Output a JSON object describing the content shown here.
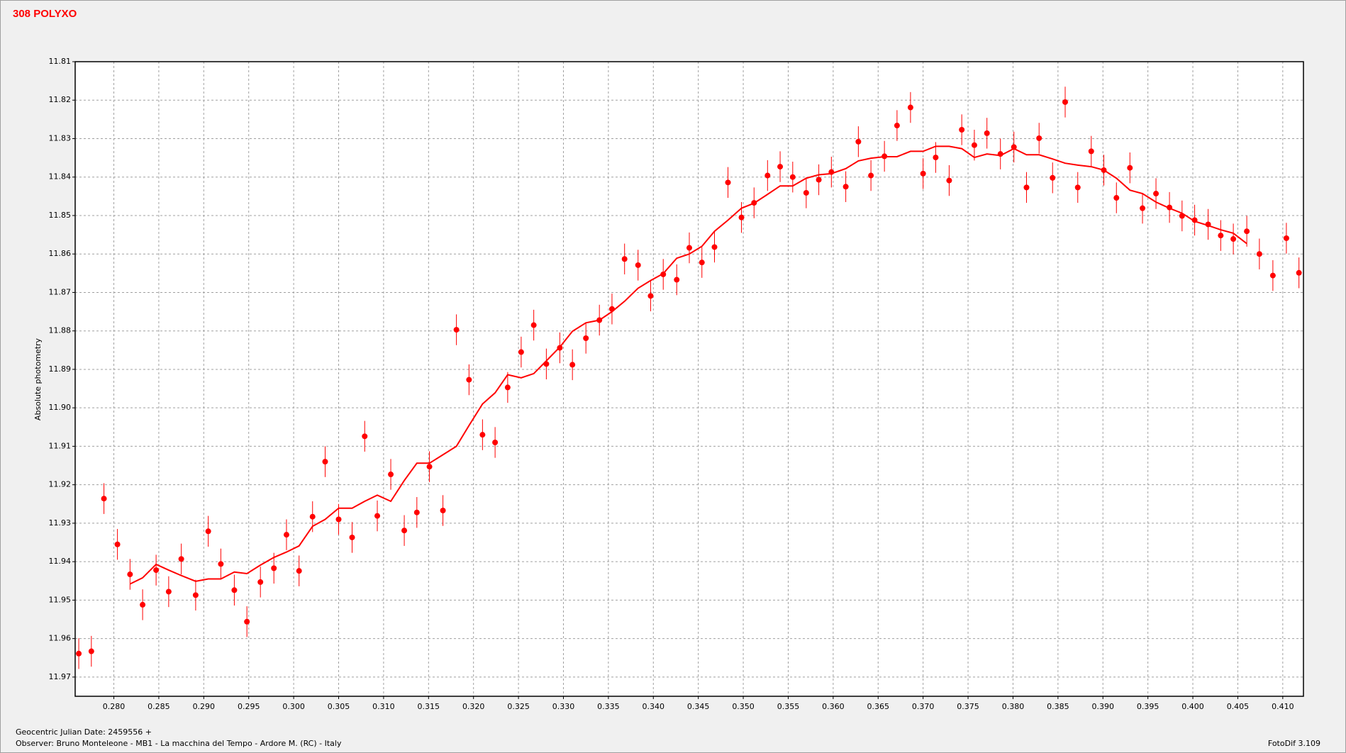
{
  "chart_data": {
    "type": "scatter",
    "title": "308 POLYXO",
    "ylabel": "Absolute photometry",
    "footer": [
      "Geocentric Julian Date: 2459556 +",
      "Observer: Bruno Monteleone - MB1 - La macchina del Tempo - Ardore M. (RC) - Italy"
    ],
    "software": "FotoDif 3.109",
    "xlim": [
      0.2757,
      0.4123
    ],
    "ylim": [
      11.975,
      11.81
    ],
    "grid": true,
    "xticks": [
      {
        "value": 0.28,
        "label": "0.280"
      },
      {
        "value": 0.285,
        "label": "0.285"
      },
      {
        "value": 0.29,
        "label": "0.290"
      },
      {
        "value": 0.295,
        "label": "0.295"
      },
      {
        "value": 0.3,
        "label": "0.300"
      },
      {
        "value": 0.305,
        "label": "0.305"
      },
      {
        "value": 0.31,
        "label": "0.310"
      },
      {
        "value": 0.315,
        "label": "0.315"
      },
      {
        "value": 0.32,
        "label": "0.320"
      },
      {
        "value": 0.325,
        "label": "0.325"
      },
      {
        "value": 0.33,
        "label": "0.330"
      },
      {
        "value": 0.335,
        "label": "0.335"
      },
      {
        "value": 0.34,
        "label": "0.340"
      },
      {
        "value": 0.345,
        "label": "0.345"
      },
      {
        "value": 0.35,
        "label": "0.350"
      },
      {
        "value": 0.355,
        "label": "0.355"
      },
      {
        "value": 0.36,
        "label": "0.360"
      },
      {
        "value": 0.365,
        "label": "0.365"
      },
      {
        "value": 0.37,
        "label": "0.370"
      },
      {
        "value": 0.375,
        "label": "0.375"
      },
      {
        "value": 0.38,
        "label": "0.380"
      },
      {
        "value": 0.385,
        "label": "0.385"
      },
      {
        "value": 0.39,
        "label": "0.390"
      },
      {
        "value": 0.395,
        "label": "0.395"
      },
      {
        "value": 0.4,
        "label": "0.400"
      },
      {
        "value": 0.405,
        "label": "0.405"
      },
      {
        "value": 0.41,
        "label": "0.410"
      }
    ],
    "yticks": [
      11.81,
      11.82,
      11.83,
      11.84,
      11.85,
      11.86,
      11.87,
      11.88,
      11.89,
      {
        "value": 11.9,
        "label": "11.90"
      },
      11.91,
      11.92,
      11.93,
      11.94,
      11.95,
      11.96,
      11.97
    ],
    "x": [
      0.2761,
      0.2775,
      0.2789,
      0.2804,
      0.2818,
      0.2832,
      0.2847,
      0.2861,
      0.2875,
      0.2891,
      0.2905,
      0.2919,
      0.2934,
      0.2948,
      0.2963,
      0.2978,
      0.2992,
      0.3006,
      0.3021,
      0.3035,
      0.305,
      0.3065,
      0.3079,
      0.3093,
      0.3108,
      0.3123,
      0.3137,
      0.3151,
      0.3166,
      0.3181,
      0.3195,
      0.321,
      0.3224,
      0.3238,
      0.3253,
      0.3267,
      0.3281,
      0.3296,
      0.331,
      0.3325,
      0.334,
      0.3354,
      0.3368,
      0.3383,
      0.3397,
      0.3411,
      0.3426,
      0.344,
      0.3454,
      0.3468,
      0.3483,
      0.3498,
      0.3512,
      0.3527,
      0.3541,
      0.3555,
      0.357,
      0.3584,
      0.3598,
      0.3614,
      0.3628,
      0.3642,
      0.3657,
      0.3671,
      0.3686,
      0.37,
      0.3714,
      0.3729,
      0.3743,
      0.3757,
      0.3771,
      0.3786,
      0.3801,
      0.3815,
      0.3829,
      0.3844,
      0.3858,
      0.3872,
      0.3887,
      0.3901,
      0.3915,
      0.393,
      0.3944,
      0.3959,
      0.3974,
      0.3988,
      0.4002,
      0.4017,
      0.4031,
      0.4045,
      0.406,
      0.4074,
      0.4089,
      0.4104,
      0.4118
    ],
    "series": [
      {
        "type": "scatter",
        "color": "#ff0000",
        "error": 0.004,
        "values": [
          11.9639,
          11.9633,
          11.9236,
          11.9355,
          11.9433,
          11.9512,
          11.9422,
          11.9478,
          11.9393,
          11.9487,
          11.9321,
          11.9406,
          11.9474,
          11.9556,
          11.9453,
          11.9417,
          11.933,
          11.9424,
          11.9283,
          11.914,
          11.929,
          11.9337,
          11.9074,
          11.9281,
          11.9173,
          11.9319,
          11.9272,
          11.9153,
          11.9267,
          11.8797,
          11.8927,
          11.907,
          11.909,
          11.8947,
          11.8855,
          11.8785,
          11.8886,
          11.8844,
          11.8888,
          11.8819,
          11.8772,
          11.8743,
          11.8613,
          11.8629,
          11.8709,
          11.8653,
          11.8667,
          11.8584,
          11.8622,
          11.8582,
          11.8414,
          11.8505,
          11.8467,
          11.8396,
          11.8373,
          11.84,
          11.8441,
          11.8407,
          11.8387,
          11.8425,
          11.8308,
          11.8396,
          11.8346,
          11.8266,
          11.8219,
          11.8391,
          11.8349,
          11.8409,
          11.8277,
          11.8317,
          11.8286,
          11.834,
          11.8322,
          11.8427,
          11.8299,
          11.8402,
          11.8205,
          11.8427,
          11.8333,
          11.8382,
          11.8454,
          11.8376,
          11.8481,
          11.8443,
          11.8479,
          11.8501,
          11.8512,
          11.8523,
          11.8552,
          11.8561,
          11.8541,
          11.86,
          11.8656,
          11.8559,
          11.8649
        ]
      },
      {
        "type": "line",
        "color": "#ff0000",
        "values": [
          null,
          null,
          null,
          null,
          11.9458,
          11.9442,
          11.9407,
          11.9422,
          11.9436,
          11.9451,
          11.9445,
          11.9445,
          11.9427,
          11.9431,
          11.9409,
          11.9389,
          11.9375,
          11.9359,
          11.9308,
          11.929,
          11.9261,
          11.9261,
          11.9243,
          11.9227,
          11.9243,
          11.9189,
          11.9144,
          11.9144,
          11.9122,
          11.91,
          11.9046,
          11.899,
          11.8961,
          11.8914,
          11.8922,
          11.8911,
          11.8878,
          11.8842,
          11.8801,
          11.8779,
          11.8772,
          11.875,
          11.8723,
          11.8689,
          11.8669,
          11.8651,
          11.8611,
          11.86,
          11.858,
          11.8541,
          11.8512,
          11.8481,
          11.8468,
          11.8445,
          11.8423,
          11.8423,
          11.8403,
          11.8394,
          11.8391,
          11.8378,
          11.8358,
          11.8351,
          11.8347,
          11.8347,
          11.8333,
          11.8333,
          11.832,
          11.832,
          11.8326,
          11.8349,
          11.834,
          11.8344,
          11.8326,
          11.8342,
          11.8342,
          11.8353,
          11.8364,
          11.8369,
          11.8373,
          11.8382,
          11.8403,
          11.8434,
          11.8443,
          11.8465,
          11.8481,
          11.8494,
          11.8515,
          11.8526,
          11.8537,
          11.8546,
          11.8573,
          null,
          null,
          null,
          null
        ]
      }
    ]
  }
}
